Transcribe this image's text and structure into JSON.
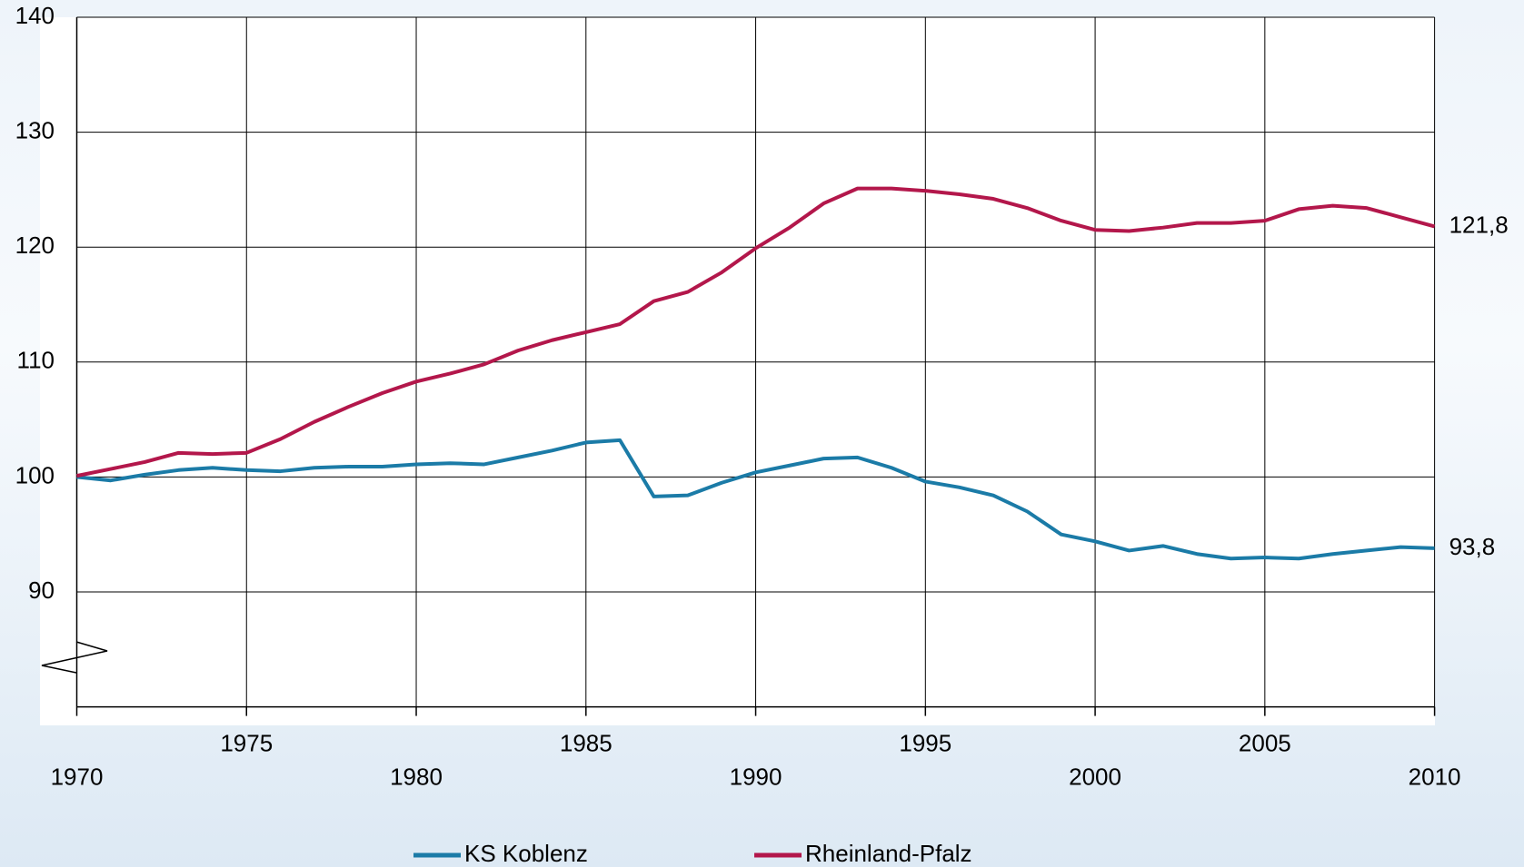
{
  "chart_data": {
    "type": "line",
    "x": [
      1970,
      1971,
      1972,
      1973,
      1974,
      1975,
      1976,
      1977,
      1978,
      1979,
      1980,
      1981,
      1982,
      1983,
      1984,
      1985,
      1986,
      1987,
      1988,
      1989,
      1990,
      1991,
      1992,
      1993,
      1994,
      1995,
      1996,
      1997,
      1998,
      1999,
      2000,
      2001,
      2002,
      2003,
      2004,
      2005,
      2006,
      2007,
      2008,
      2009,
      2010
    ],
    "series": [
      {
        "name": "KS Koblenz",
        "color": "#1b7ba7",
        "values": [
          100,
          99.7,
          100.2,
          100.6,
          100.8,
          100.6,
          100.5,
          100.8,
          100.9,
          100.9,
          101.1,
          101.2,
          101.1,
          101.7,
          102.3,
          103.0,
          103.2,
          98.3,
          98.4,
          99.5,
          100.4,
          101.0,
          101.6,
          101.7,
          100.8,
          99.6,
          99.1,
          98.4,
          97.0,
          95.0,
          94.4,
          93.6,
          94.0,
          93.3,
          92.9,
          93.0,
          92.9,
          93.3,
          93.6,
          93.9,
          93.8
        ],
        "value_labels": [
          null,
          null,
          null,
          null,
          null,
          null,
          null,
          null,
          null,
          null,
          null,
          null,
          null,
          null,
          null,
          null,
          null,
          null,
          null,
          null,
          null,
          null,
          null,
          null,
          null,
          null,
          null,
          null,
          null,
          null,
          null,
          null,
          null,
          null,
          null,
          null,
          null,
          null,
          null,
          null,
          "93,8"
        ]
      },
      {
        "name": "Rheinland-Pfalz",
        "color": "#b3174b",
        "values": [
          100.1,
          100.7,
          101.3,
          102.1,
          102.0,
          102.1,
          103.3,
          104.8,
          106.1,
          107.3,
          108.3,
          109.0,
          109.8,
          111.0,
          111.9,
          112.6,
          113.3,
          115.3,
          116.1,
          117.8,
          119.9,
          121.7,
          123.8,
          125.1,
          125.1,
          124.9,
          124.6,
          124.2,
          123.4,
          122.3,
          121.5,
          121.4,
          121.7,
          122.1,
          122.1,
          122.3,
          123.3,
          123.6,
          123.4,
          122.6,
          121.8
        ],
        "value_labels": [
          null,
          null,
          null,
          null,
          null,
          null,
          null,
          null,
          null,
          null,
          null,
          null,
          null,
          null,
          null,
          null,
          null,
          null,
          null,
          null,
          null,
          null,
          null,
          null,
          null,
          null,
          null,
          null,
          null,
          null,
          null,
          null,
          null,
          null,
          null,
          null,
          null,
          null,
          null,
          null,
          "121,8"
        ]
      }
    ],
    "xlim": [
      1970,
      2010
    ],
    "xticks": [
      1970,
      1975,
      1980,
      1985,
      1990,
      1995,
      2000,
      2005,
      2010
    ],
    "ylim": [
      80,
      140
    ],
    "yticks": [
      90,
      100,
      110,
      120,
      130,
      140
    ],
    "grid": true,
    "legend": "bottom"
  }
}
